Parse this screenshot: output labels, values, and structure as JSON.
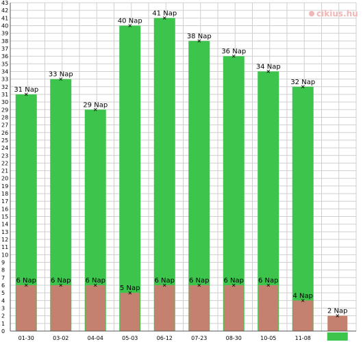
{
  "chart_data": {
    "type": "bar",
    "categories": [
      "01-30",
      "03-02",
      "04-04",
      "05-03",
      "06-12",
      "07-23",
      "08-30",
      "10-05",
      "11-08",
      ""
    ],
    "series": [
      {
        "values": [
          31,
          33,
          29,
          40,
          41,
          38,
          36,
          34,
          32,
          null
        ]
      },
      {
        "values": [
          6,
          6,
          6,
          5,
          6,
          6,
          6,
          6,
          4,
          2
        ]
      }
    ],
    "value_unit": "Nap",
    "ylim": [
      0,
      43
    ],
    "grid": true,
    "colors": {
      "cycle": "#3cc44c",
      "period": "#c48170",
      "grid": "#cfcfcf",
      "axis": "#555555"
    },
    "last_column_marker": "green-swatch-below-axis"
  },
  "watermark": {
    "text": "cikius.hu",
    "color": "#f1b6b6"
  }
}
